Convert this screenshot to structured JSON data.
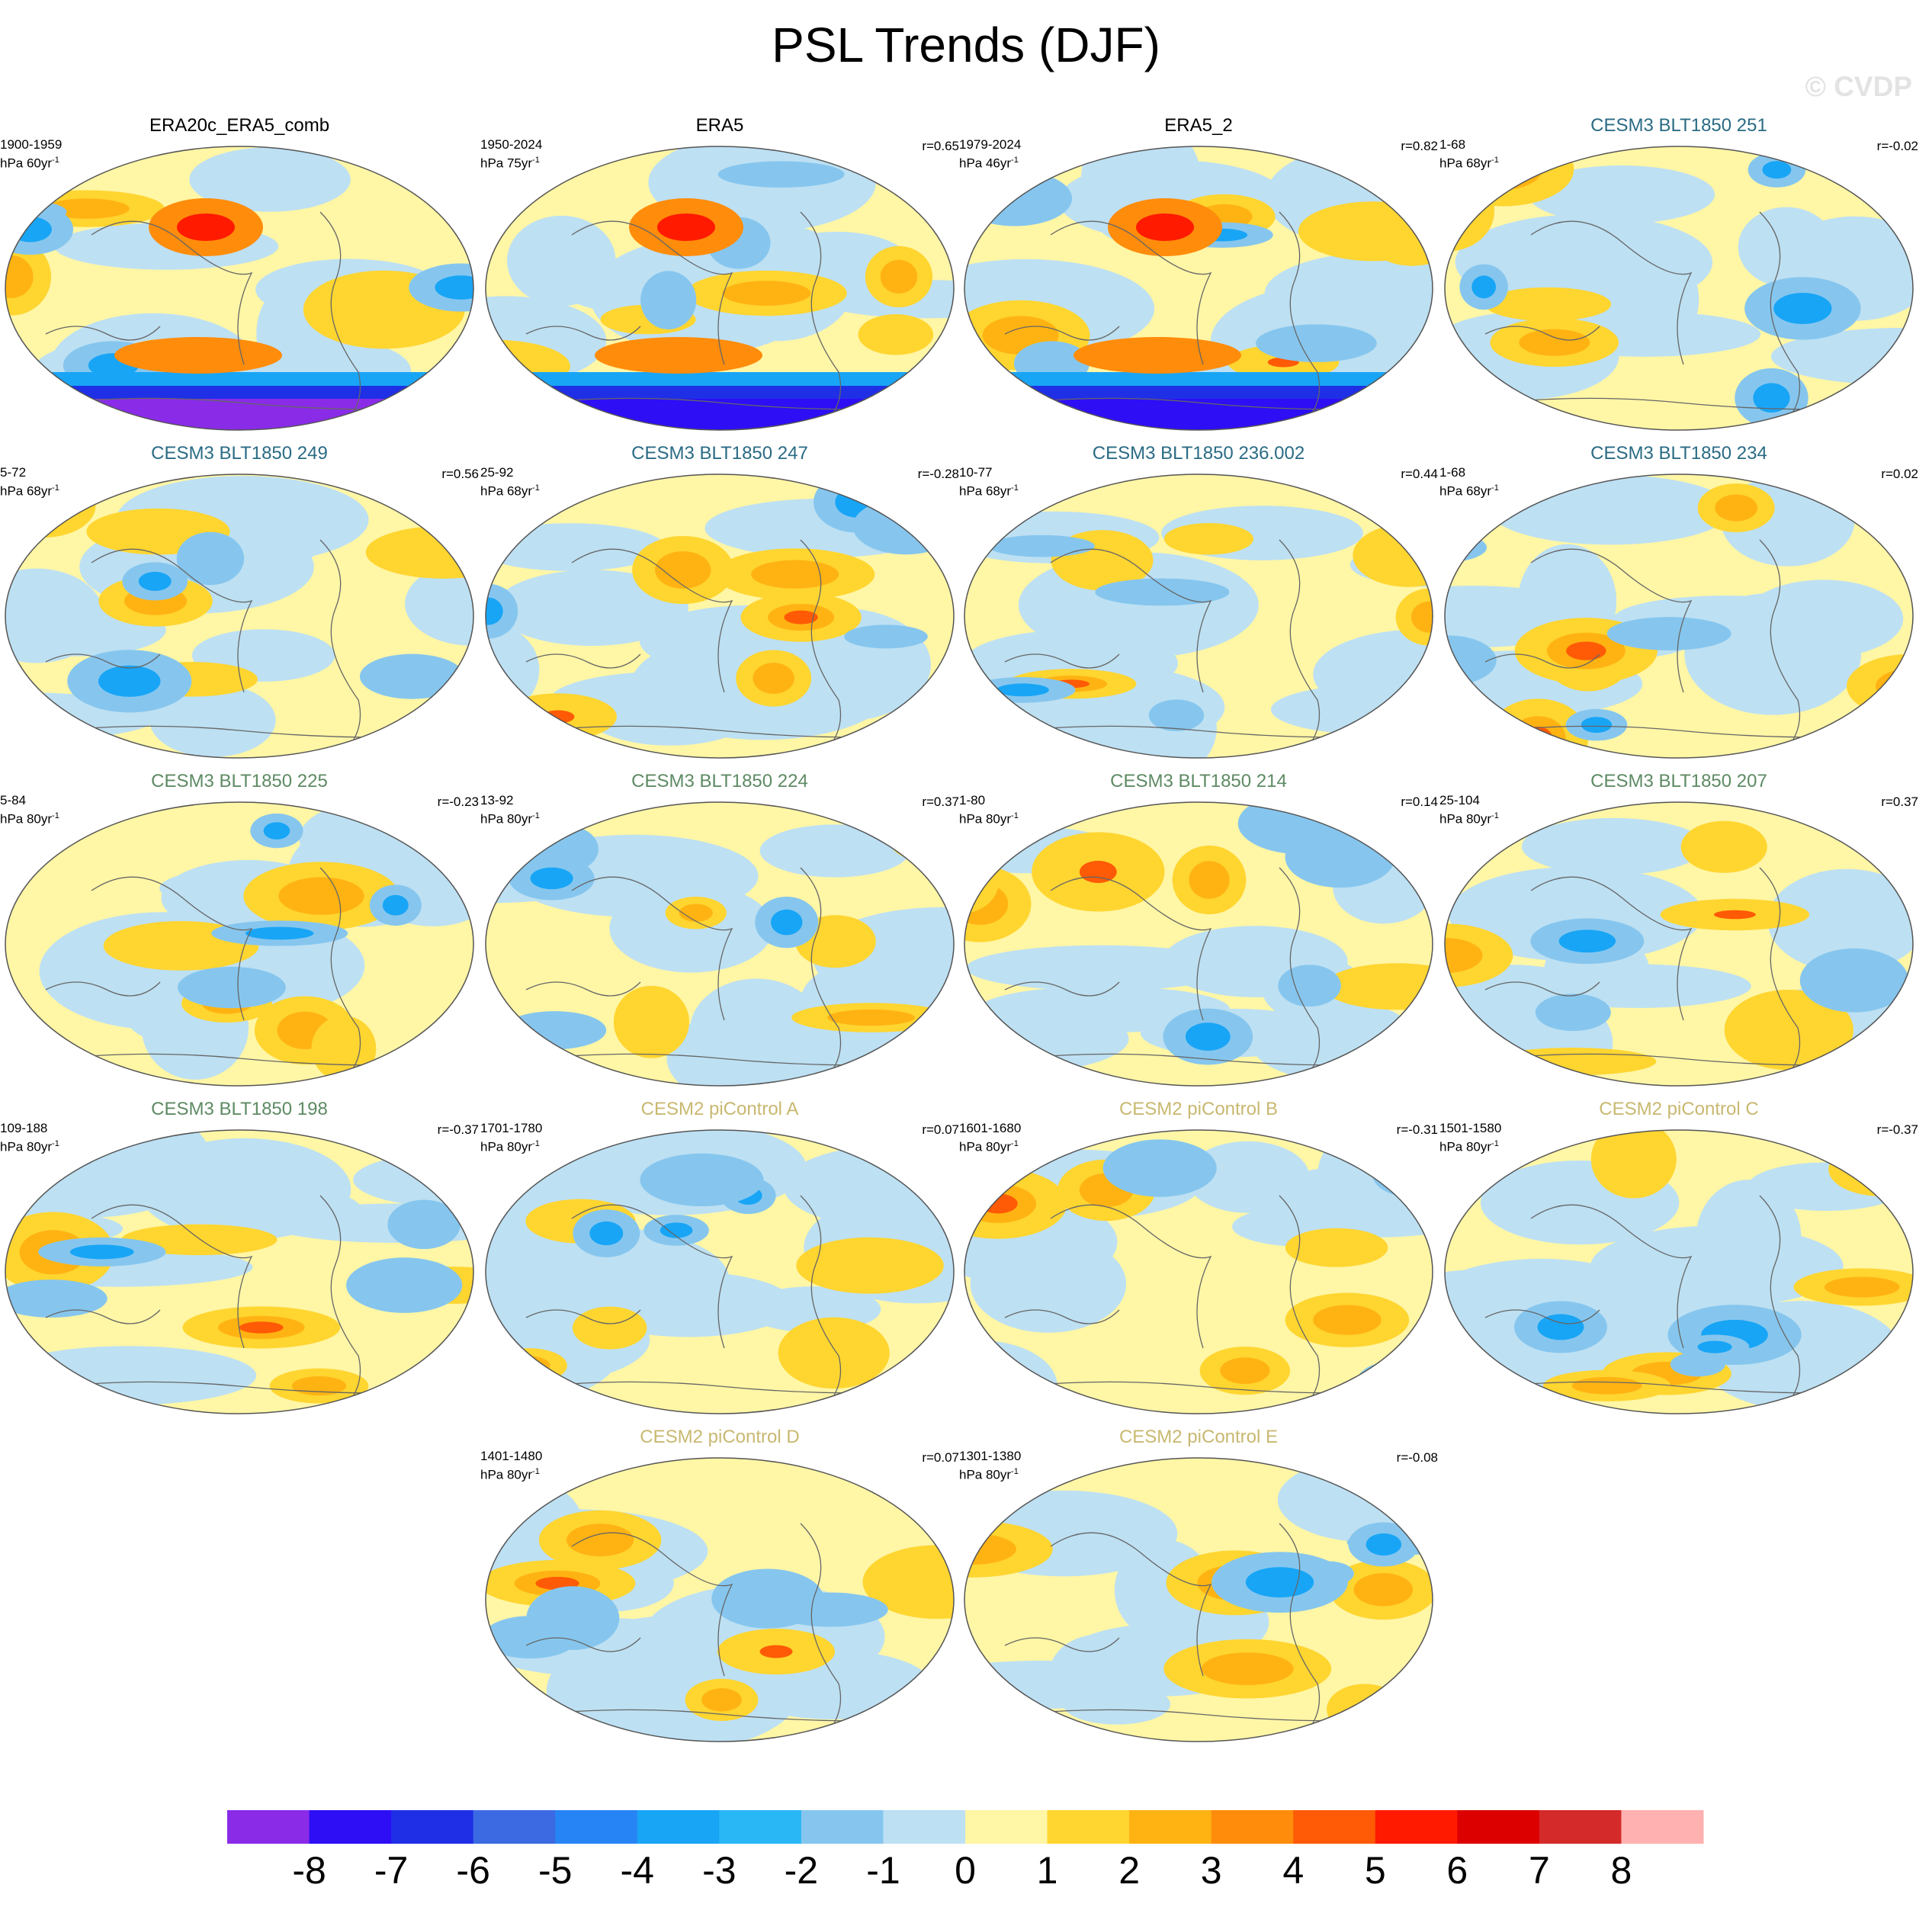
{
  "title": "PSL Trends (DJF)",
  "watermark": "© CVDP",
  "colors": {
    "bins": [
      "#8a2be8",
      "#2d0ef5",
      "#1f2fe6",
      "#3c6ae2",
      "#2784f4",
      "#18a5f6",
      "#2ab7f6",
      "#86c6ee",
      "#bde0f3",
      "#fff6a6",
      "#ffd530",
      "#ffb312",
      "#ff8c0b",
      "#ff5a05",
      "#ff1a00",
      "#dd0000",
      "#d42a2a",
      "#ffb0b0"
    ],
    "coastline": "#666666"
  },
  "colorbar": {
    "labels": [
      "-8",
      "-7",
      "-6",
      "-5",
      "-4",
      "-3",
      "-2",
      "-1",
      "0",
      "1",
      "2",
      "3",
      "4",
      "5",
      "6",
      "7",
      "8"
    ]
  },
  "panels": [
    {
      "title": "ERA20c_ERA5_comb",
      "title_color": "#000000",
      "range": "1900-1959",
      "unit": "hPa 60yr",
      "unit_exp": "-1",
      "r": ""
    },
    {
      "title": "ERA5",
      "title_color": "#000000",
      "range": "1950-2024",
      "unit": "hPa 75yr",
      "unit_exp": "-1",
      "r": "r=0.65"
    },
    {
      "title": "ERA5_2",
      "title_color": "#000000",
      "range": "1979-2024",
      "unit": "hPa 46yr",
      "unit_exp": "-1",
      "r": "r=0.82"
    },
    {
      "title": "CESM3 BLT1850 251",
      "title_color": "#2a6b84",
      "range": "1-68",
      "unit": "hPa 68yr",
      "unit_exp": "-1",
      "r": "r=-0.02"
    },
    {
      "title": "CESM3 BLT1850 249",
      "title_color": "#2a6b84",
      "range": "5-72",
      "unit": "hPa 68yr",
      "unit_exp": "-1",
      "r": "r=0.56"
    },
    {
      "title": "CESM3 BLT1850 247",
      "title_color": "#2a6b84",
      "range": "25-92",
      "unit": "hPa 68yr",
      "unit_exp": "-1",
      "r": "r=-0.28"
    },
    {
      "title": "CESM3 BLT1850 236.002",
      "title_color": "#2a6b84",
      "range": "10-77",
      "unit": "hPa 68yr",
      "unit_exp": "-1",
      "r": "r=0.44"
    },
    {
      "title": "CESM3 BLT1850 234",
      "title_color": "#2a6b84",
      "range": "1-68",
      "unit": "hPa 68yr",
      "unit_exp": "-1",
      "r": "r=0.02"
    },
    {
      "title": "CESM3 BLT1850 225",
      "title_color": "#5d8a63",
      "range": "5-84",
      "unit": "hPa 80yr",
      "unit_exp": "-1",
      "r": "r=-0.23"
    },
    {
      "title": "CESM3 BLT1850 224",
      "title_color": "#5d8a63",
      "range": "13-92",
      "unit": "hPa 80yr",
      "unit_exp": "-1",
      "r": "r=0.37"
    },
    {
      "title": "CESM3 BLT1850 214",
      "title_color": "#5d8a63",
      "range": "1-80",
      "unit": "hPa 80yr",
      "unit_exp": "-1",
      "r": "r=0.14"
    },
    {
      "title": "CESM3 BLT1850 207",
      "title_color": "#5d8a63",
      "range": "25-104",
      "unit": "hPa 80yr",
      "unit_exp": "-1",
      "r": "r=0.37"
    },
    {
      "title": "CESM3 BLT1850 198",
      "title_color": "#5d8a63",
      "range": "109-188",
      "unit": "hPa 80yr",
      "unit_exp": "-1",
      "r": "r=-0.37"
    },
    {
      "title": "CESM2 piControl A",
      "title_color": "#c9b870",
      "range": "1701-1780",
      "unit": "hPa 80yr",
      "unit_exp": "-1",
      "r": "r=0.07"
    },
    {
      "title": "CESM2 piControl B",
      "title_color": "#c9b870",
      "range": "1601-1680",
      "unit": "hPa 80yr",
      "unit_exp": "-1",
      "r": "r=-0.31"
    },
    {
      "title": "CESM2 piControl C",
      "title_color": "#c9b870",
      "range": "1501-1580",
      "unit": "hPa 80yr",
      "unit_exp": "-1",
      "r": "r=-0.37"
    },
    {
      "title": "CESM2 piControl D",
      "title_color": "#c9b870",
      "range": "1401-1480",
      "unit": "hPa 80yr",
      "unit_exp": "-1",
      "r": "r=0.07"
    },
    {
      "title": "CESM2 piControl E",
      "title_color": "#c9b870",
      "range": "1301-1380",
      "unit": "hPa 80yr",
      "unit_exp": "-1",
      "r": "r=-0.08"
    }
  ]
}
